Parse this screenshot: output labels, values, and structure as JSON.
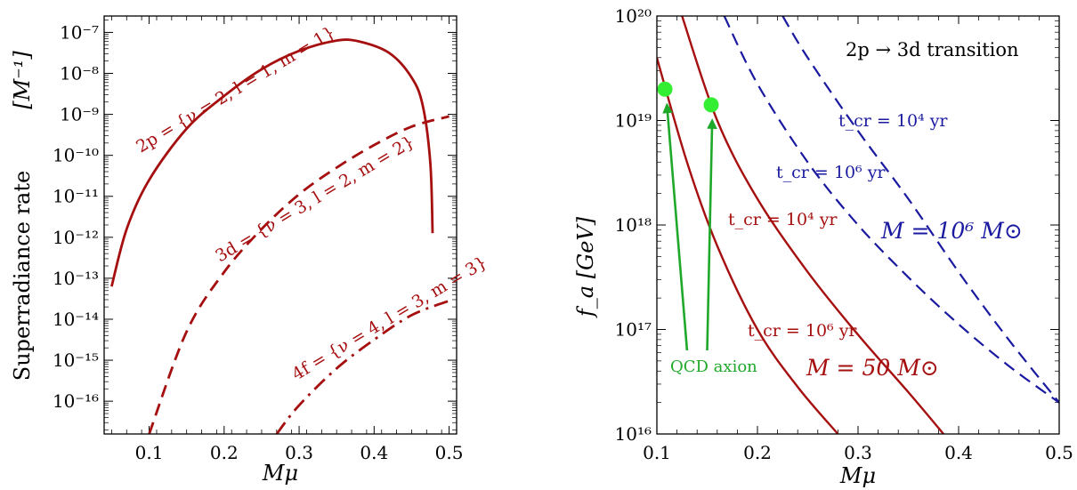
{
  "chart_data": [
    {
      "type": "line",
      "title": "",
      "xlabel": "Mμ",
      "ylabel": "Superradiance  rate",
      "yunit": "[M⁻¹]",
      "xlim": [
        0.04,
        0.51
      ],
      "ylim_log10": [
        -16.8,
        -6.6
      ],
      "yscale": "log",
      "x_ticks": [
        "0.1",
        "0.2",
        "0.3",
        "0.4",
        "0.5"
      ],
      "y_ticks": [
        "10⁻⁷",
        "10⁻⁸",
        "10⁻⁹",
        "10⁻¹⁰",
        "10⁻¹¹",
        "10⁻¹²",
        "10⁻¹³",
        "10⁻¹⁴",
        "10⁻¹⁵",
        "10⁻¹⁶"
      ],
      "colors": {
        "series": "#a60f0f"
      },
      "series": [
        {
          "name": "2p = {ν = 2, l = 1, m = 1}",
          "style": "solid",
          "x": [
            0.05,
            0.07,
            0.1,
            0.15,
            0.2,
            0.25,
            0.3,
            0.35,
            0.38,
            0.42,
            0.45,
            0.465,
            0.475,
            0.478
          ],
          "log10_y": [
            -13.2,
            -11.8,
            -10.6,
            -9.35,
            -8.55,
            -7.9,
            -7.45,
            -7.2,
            -7.22,
            -7.5,
            -8.1,
            -8.8,
            -10.2,
            -11.9
          ]
        },
        {
          "name": "3d = {ν = 3, l = 2, m = 2}",
          "style": "dashed",
          "x": [
            0.1,
            0.15,
            0.2,
            0.25,
            0.3,
            0.35,
            0.4,
            0.45,
            0.5
          ],
          "log10_y": [
            -16.8,
            -14.3,
            -12.85,
            -11.8,
            -10.95,
            -10.3,
            -9.75,
            -9.3,
            -9.05
          ]
        },
        {
          "name": "4f = {ν = 4, l = 3, m = 3}",
          "style": "dashdot",
          "x": [
            0.27,
            0.3,
            0.35,
            0.4,
            0.45,
            0.5
          ],
          "log10_y": [
            -16.8,
            -16.1,
            -15.2,
            -14.5,
            -13.9,
            -13.55
          ]
        }
      ]
    },
    {
      "type": "line",
      "title": "2p → 3d transition",
      "xlabel": "Mμ",
      "ylabel": "f_a  [GeV]",
      "xlim": [
        0.1,
        0.5
      ],
      "ylim_log10": [
        16,
        20
      ],
      "yscale": "log",
      "x_ticks": [
        "0.1",
        "0.2",
        "0.3",
        "0.4",
        "0.5"
      ],
      "y_ticks": [
        "10¹⁶",
        "10¹⁷",
        "10¹⁸",
        "10¹⁹",
        "10²⁰"
      ],
      "colors": {
        "red": "#a60f0f",
        "blue": "#1a1aa0",
        "green": "#1fa82a",
        "marker": "#33ee33"
      },
      "series": [
        {
          "name": "t_cr = 10⁴ yr (M = 50 M⊙)",
          "color": "red",
          "style": "solid",
          "x": [
            0.1,
            0.13,
            0.16,
            0.2,
            0.24,
            0.28
          ],
          "log10_y": [
            19.6,
            18.6,
            17.8,
            17.0,
            16.45,
            16.0
          ]
        },
        {
          "name": "t_cr = 10⁶ yr (M = 50 M⊙)",
          "color": "red",
          "style": "solid",
          "x": [
            0.125,
            0.16,
            0.2,
            0.25,
            0.3,
            0.35,
            0.385
          ],
          "log10_y": [
            20.0,
            19.0,
            18.25,
            17.55,
            16.95,
            16.4,
            16.0
          ]
        },
        {
          "name": "t_cr = 10⁴ yr (M = 10⁶ M⊙)",
          "color": "blue",
          "style": "dashed",
          "x": [
            0.167,
            0.2,
            0.25,
            0.3,
            0.35,
            0.4,
            0.45,
            0.5
          ],
          "log10_y": [
            20.0,
            19.35,
            18.6,
            18.0,
            17.5,
            17.05,
            16.65,
            16.3
          ]
        },
        {
          "name": "t_cr = 10⁶ yr (M = 10⁶ M⊙)",
          "color": "blue",
          "style": "dashed",
          "x": [
            0.225,
            0.25,
            0.3,
            0.35,
            0.4,
            0.45,
            0.5
          ],
          "log10_y": [
            20.0,
            19.6,
            18.9,
            18.25,
            17.55,
            16.9,
            16.3
          ]
        }
      ],
      "markers": [
        {
          "x": 0.108,
          "log10_y": 19.3
        },
        {
          "x": 0.154,
          "log10_y": 19.15
        }
      ],
      "arrows": [
        {
          "from": {
            "x": 0.13,
            "log10_y": 16.8
          },
          "to": {
            "x": 0.11,
            "log10_y": 19.15
          }
        },
        {
          "from": {
            "x": 0.15,
            "log10_y": 16.8
          },
          "to": {
            "x": 0.155,
            "log10_y": 19.0
          }
        }
      ]
    }
  ],
  "annotations": {
    "left": {
      "label_2p": "2p = {ν = 2, l = 1, m = 1}",
      "label_3d": "3d = {ν = 3, l = 2, m = 2}",
      "label_4f": "4f = {ν = 4, l = 3, m = 3}"
    },
    "right": {
      "title": "2p → 3d transition",
      "blue_t4": "t_cr = 10⁴ yr",
      "blue_t6": "t_cr = 10⁶ yr",
      "blue_mass": "M = 10⁶ M⊙",
      "red_t4": "t_cr = 10⁴ yr",
      "red_t6": "t_cr = 10⁶ yr",
      "red_mass": "M = 50 M⊙",
      "qcd": "QCD axion"
    }
  }
}
